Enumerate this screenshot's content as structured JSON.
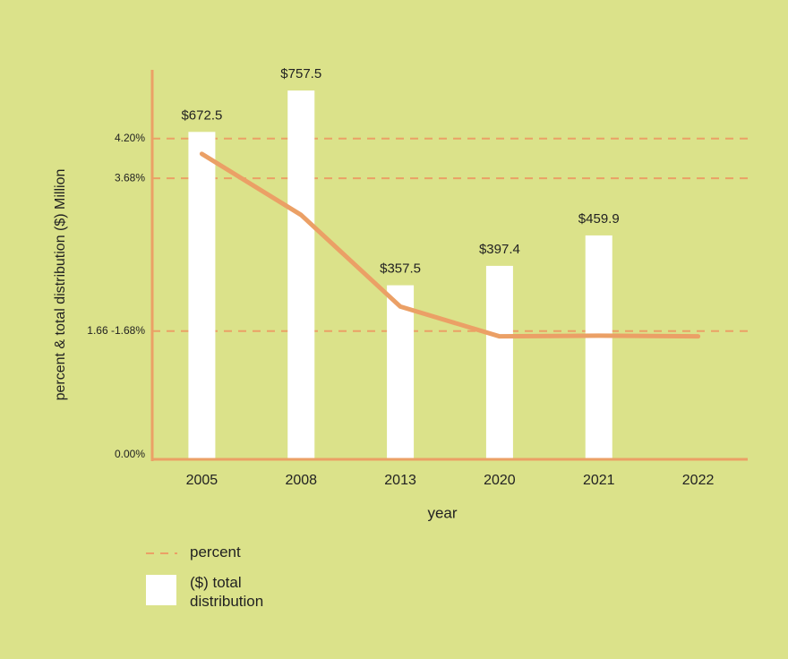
{
  "chart_data": {
    "type": "bar",
    "y_label": "percent & total distribution ($) Million",
    "x_label": "year",
    "categories": [
      "2005",
      "2008",
      "2013",
      "2020",
      "2021",
      "2022"
    ],
    "series": [
      {
        "name": "($) total distribution",
        "type": "bar",
        "color": "#ffffff",
        "axis": "y2",
        "values": [
          672.5,
          757.5,
          357.5,
          397.4,
          459.9,
          null
        ],
        "value_labels": [
          "$672.5",
          "$757.5",
          "$357.5",
          "$397.4",
          "$459.9",
          null
        ]
      },
      {
        "name": "percent",
        "type": "line",
        "color": "#eba066",
        "values": [
          4.0,
          3.2,
          2.0,
          1.61,
          1.62,
          1.61
        ]
      }
    ],
    "ylim": [
      0,
      5.1
    ],
    "yticks": [
      {
        "value": 4.2,
        "label": "4.20%"
      },
      {
        "value": 3.68,
        "label": "3.68%"
      },
      {
        "value": 1.68,
        "label": "1.66 -1.68%"
      },
      {
        "value": 0,
        "label": "0.00%"
      }
    ],
    "y2lim": [
      0,
      800
    ],
    "grid": true,
    "axis_color": "#eba066",
    "background": "#dbe28a"
  }
}
